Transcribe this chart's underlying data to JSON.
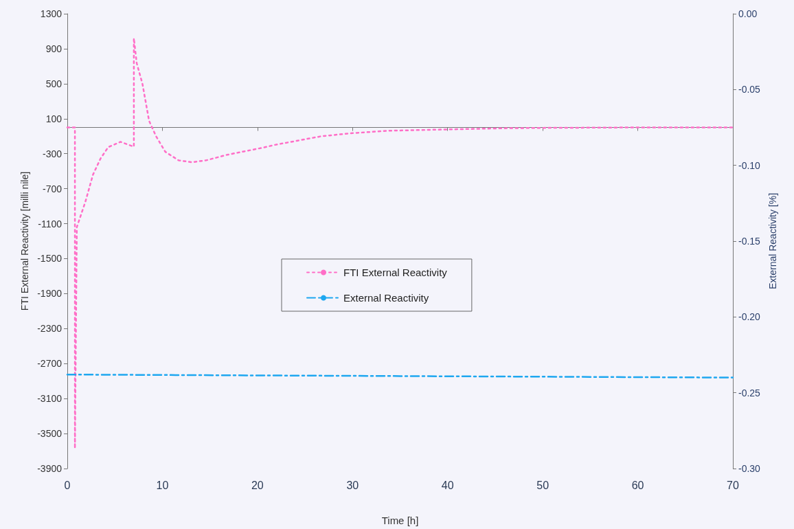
{
  "chart_data": {
    "type": "line",
    "xlabel": "Time [h]",
    "ylabel": "FTI External Reactivity [milli nile]",
    "y2label": "External Reactivity [%]",
    "xlim": [
      0,
      70
    ],
    "xticks": [
      0,
      10,
      20,
      30,
      40,
      50,
      60,
      70
    ],
    "ylim": [
      -3900,
      1300
    ],
    "yticks": [
      1300,
      900,
      500,
      100,
      -300,
      -700,
      -1100,
      -1500,
      -1900,
      -2300,
      -2700,
      -3100,
      -3500,
      -3900
    ],
    "y2lim": [
      -0.3,
      0
    ],
    "y2ticks": [
      {
        "value": 0,
        "label": "0.00"
      },
      {
        "value": -0.05,
        "label": "-0.05"
      },
      {
        "value": -0.1,
        "label": "-0.10"
      },
      {
        "value": -0.15,
        "label": "-0.15"
      },
      {
        "value": -0.2,
        "label": "-0.20"
      },
      {
        "value": -0.25,
        "label": "-0.25"
      },
      {
        "value": -0.3,
        "label": "-0.30"
      }
    ],
    "grid": false,
    "legend": "center",
    "marker": "none",
    "series": [
      {
        "name": "FTI External Reactivity",
        "color": "#ff6ec7",
        "line_style": "dotted",
        "x": [
          0,
          0.8,
          0.8,
          1.0,
          1.9,
          2.7,
          3.5,
          4.3,
          5.6,
          7.0,
          7.0,
          7.3,
          7.9,
          8.6,
          9.3,
          10.3,
          11.7,
          13.1,
          14.6,
          16.8,
          20.4,
          21.8,
          26.7,
          30,
          33.9,
          39.9,
          45.9,
          50,
          60,
          70
        ],
        "values": [
          0,
          0,
          -3670,
          -1140,
          -850,
          -540,
          -355,
          -225,
          -165,
          -220,
          1020,
          734,
          500,
          76,
          -94,
          -278,
          -376,
          -398,
          -376,
          -313,
          -235,
          -200,
          -101,
          -65,
          -37,
          -23,
          -9,
          -5,
          0,
          0
        ]
      },
      {
        "name": "External Reactivity",
        "color": "#1ea7f0",
        "line_style": "dashed",
        "axis": "y2",
        "x": [
          0,
          35,
          70
        ],
        "values": [
          -0.238,
          -0.239,
          -0.24
        ]
      }
    ]
  }
}
